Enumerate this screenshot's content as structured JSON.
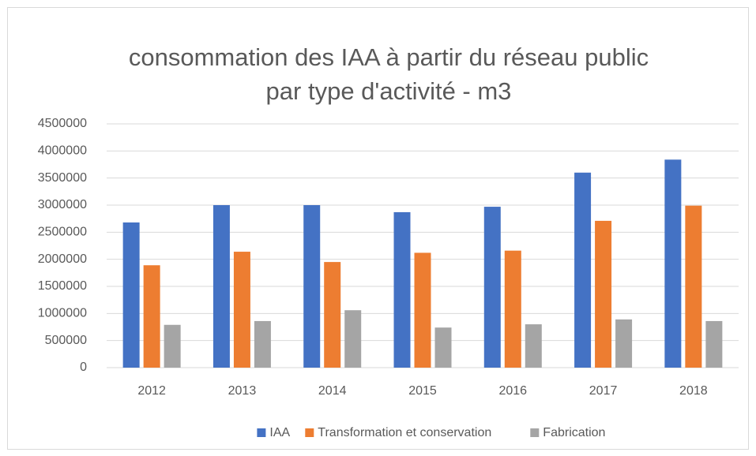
{
  "chart_data": {
    "type": "bar",
    "title": [
      "consommation des IAA à partir du réseau public",
      "par type d'activité - m3"
    ],
    "categories": [
      "2012",
      "2013",
      "2014",
      "2015",
      "2016",
      "2017",
      "2018"
    ],
    "series": [
      {
        "name": "IAA",
        "color": "#4472c4",
        "values": [
          2680000,
          3000000,
          3000000,
          2870000,
          2970000,
          3600000,
          3840000
        ]
      },
      {
        "name": "Transformation et conservation",
        "color": "#ed7d31",
        "values": [
          1890000,
          2140000,
          1950000,
          2120000,
          2160000,
          2710000,
          2990000
        ]
      },
      {
        "name": "Fabrication",
        "color": "#a5a5a5",
        "values": [
          790000,
          860000,
          1060000,
          740000,
          800000,
          890000,
          860000
        ]
      }
    ],
    "ylim": [
      0,
      4500000
    ],
    "yticks": [
      0,
      500000,
      1000000,
      1500000,
      2000000,
      2500000,
      3000000,
      3500000,
      4000000,
      4500000
    ],
    "grid": true,
    "legend": "bottom"
  }
}
